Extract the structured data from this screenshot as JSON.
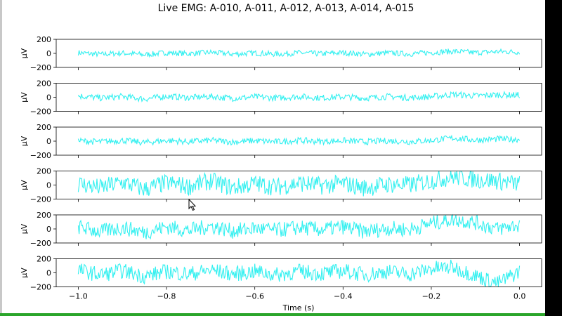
{
  "window": {
    "background": "#ffffff",
    "trace_color": "#33f0f0",
    "axes_color": "#000000"
  },
  "chart_data": {
    "type": "line",
    "title": "Live EMG: A-010, A-011, A-012, A-013, A-014, A-015",
    "xlabel": "Time (s)",
    "ylabel": "µV",
    "xlim": [
      -1.05,
      0.05
    ],
    "ylim": [
      -200,
      200
    ],
    "x_ticks": [
      -1.0,
      -0.8,
      -0.6,
      -0.4,
      -0.2,
      0.0
    ],
    "x_tick_labels": [
      "−1.0",
      "−0.8",
      "−0.6",
      "−0.4",
      "−0.2",
      "0.0"
    ],
    "y_ticks": [
      -200,
      0,
      200
    ],
    "y_tick_labels": [
      "−200",
      "0",
      "200"
    ],
    "grid": false,
    "series": [
      {
        "amplitude": 40,
        "x": [
          -1.0,
          -0.95,
          -0.9,
          -0.85,
          -0.8,
          -0.75,
          -0.7,
          -0.65,
          -0.6,
          -0.55,
          -0.5,
          -0.45,
          -0.4,
          -0.35,
          -0.3,
          -0.25,
          -0.2,
          -0.15,
          -0.1,
          -0.05,
          0.0
        ],
        "y": [
          10,
          -15,
          5,
          -20,
          10,
          -5,
          15,
          -10,
          5,
          -12,
          8,
          -6,
          10,
          -14,
          6,
          -8,
          12,
          30,
          10,
          25,
          20
        ]
      },
      {
        "amplitude": 45,
        "x": [
          -1.0,
          -0.95,
          -0.9,
          -0.85,
          -0.8,
          -0.75,
          -0.7,
          -0.65,
          -0.6,
          -0.55,
          -0.5,
          -0.45,
          -0.4,
          -0.35,
          -0.3,
          -0.25,
          -0.2,
          -0.15,
          -0.1,
          -0.05,
          0.0
        ],
        "y": [
          20,
          -10,
          10,
          -25,
          15,
          -5,
          10,
          -15,
          5,
          -10,
          10,
          -8,
          8,
          -12,
          10,
          -6,
          8,
          40,
          20,
          35,
          30
        ]
      },
      {
        "amplitude": 45,
        "x": [
          -1.0,
          -0.95,
          -0.9,
          -0.85,
          -0.8,
          -0.75,
          -0.7,
          -0.65,
          -0.6,
          -0.55,
          -0.5,
          -0.45,
          -0.4,
          -0.35,
          -0.3,
          -0.25,
          -0.2,
          -0.15,
          -0.1,
          -0.05,
          0.0
        ],
        "y": [
          5,
          -10,
          10,
          -20,
          10,
          -8,
          12,
          -12,
          6,
          -10,
          10,
          -5,
          8,
          -10,
          6,
          -8,
          10,
          45,
          15,
          30,
          25
        ]
      },
      {
        "amplitude": 130,
        "x": [
          -1.0,
          -0.95,
          -0.9,
          -0.85,
          -0.8,
          -0.75,
          -0.7,
          -0.65,
          -0.6,
          -0.55,
          -0.5,
          -0.45,
          -0.4,
          -0.35,
          -0.3,
          -0.25,
          -0.2,
          -0.15,
          -0.1,
          -0.05,
          0.0
        ],
        "y": [
          20,
          -40,
          40,
          -60,
          30,
          -20,
          60,
          -40,
          20,
          -30,
          30,
          -10,
          20,
          -40,
          10,
          0,
          60,
          120,
          80,
          60,
          10
        ]
      },
      {
        "amplitude": 110,
        "x": [
          -1.0,
          -0.95,
          -0.9,
          -0.85,
          -0.8,
          -0.75,
          -0.7,
          -0.65,
          -0.6,
          -0.55,
          -0.5,
          -0.45,
          -0.4,
          -0.35,
          -0.3,
          -0.25,
          -0.2,
          -0.15,
          -0.1,
          -0.05,
          0.0
        ],
        "y": [
          30,
          -40,
          20,
          -50,
          30,
          -20,
          40,
          -30,
          10,
          -20,
          20,
          -10,
          30,
          -40,
          10,
          -10,
          80,
          140,
          90,
          0,
          60
        ]
      },
      {
        "amplitude": 110,
        "x": [
          -1.0,
          -0.95,
          -0.9,
          -0.85,
          -0.8,
          -0.75,
          -0.7,
          -0.65,
          -0.6,
          -0.55,
          -0.5,
          -0.45,
          -0.4,
          -0.35,
          -0.3,
          -0.25,
          -0.2,
          -0.15,
          -0.1,
          -0.05,
          0.0
        ],
        "y": [
          40,
          -30,
          30,
          -50,
          20,
          -20,
          40,
          -20,
          20,
          -30,
          20,
          -10,
          30,
          -30,
          20,
          -20,
          60,
          80,
          -40,
          -150,
          20
        ]
      }
    ]
  }
}
